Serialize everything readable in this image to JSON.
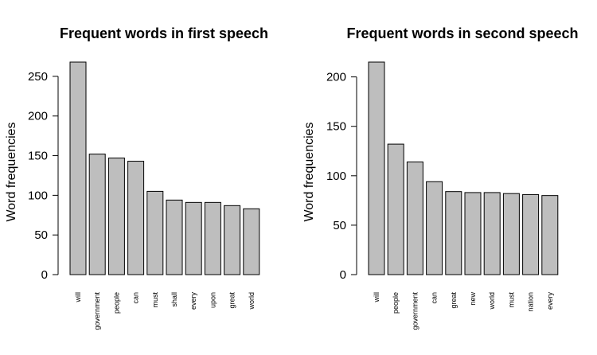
{
  "chart_data": [
    {
      "type": "bar",
      "title": "Frequent words in first speech",
      "ylabel": "Word frequencies",
      "xlabel": "",
      "categories": [
        "will",
        "government",
        "people",
        "can",
        "must",
        "shall",
        "every",
        "upon",
        "great",
        "world"
      ],
      "values": [
        268,
        152,
        147,
        143,
        105,
        94,
        91,
        91,
        87,
        83
      ],
      "yticks": [
        0,
        50,
        100,
        150,
        200,
        250
      ],
      "ylim": [
        0,
        268
      ],
      "bar_color": "#bebebe",
      "grid": false,
      "legend": "none"
    },
    {
      "type": "bar",
      "title": "Frequent words in second speech",
      "ylabel": "Word frequencies",
      "xlabel": "",
      "categories": [
        "will",
        "people",
        "government",
        "can",
        "great",
        "new",
        "world",
        "must",
        "nation",
        "every"
      ],
      "values": [
        215,
        132,
        114,
        94,
        84,
        83,
        83,
        82,
        81,
        80
      ],
      "yticks": [
        0,
        50,
        100,
        150,
        200
      ],
      "ylim": [
        0,
        215
      ],
      "bar_color": "#bebebe",
      "grid": false,
      "legend": "none"
    }
  ]
}
